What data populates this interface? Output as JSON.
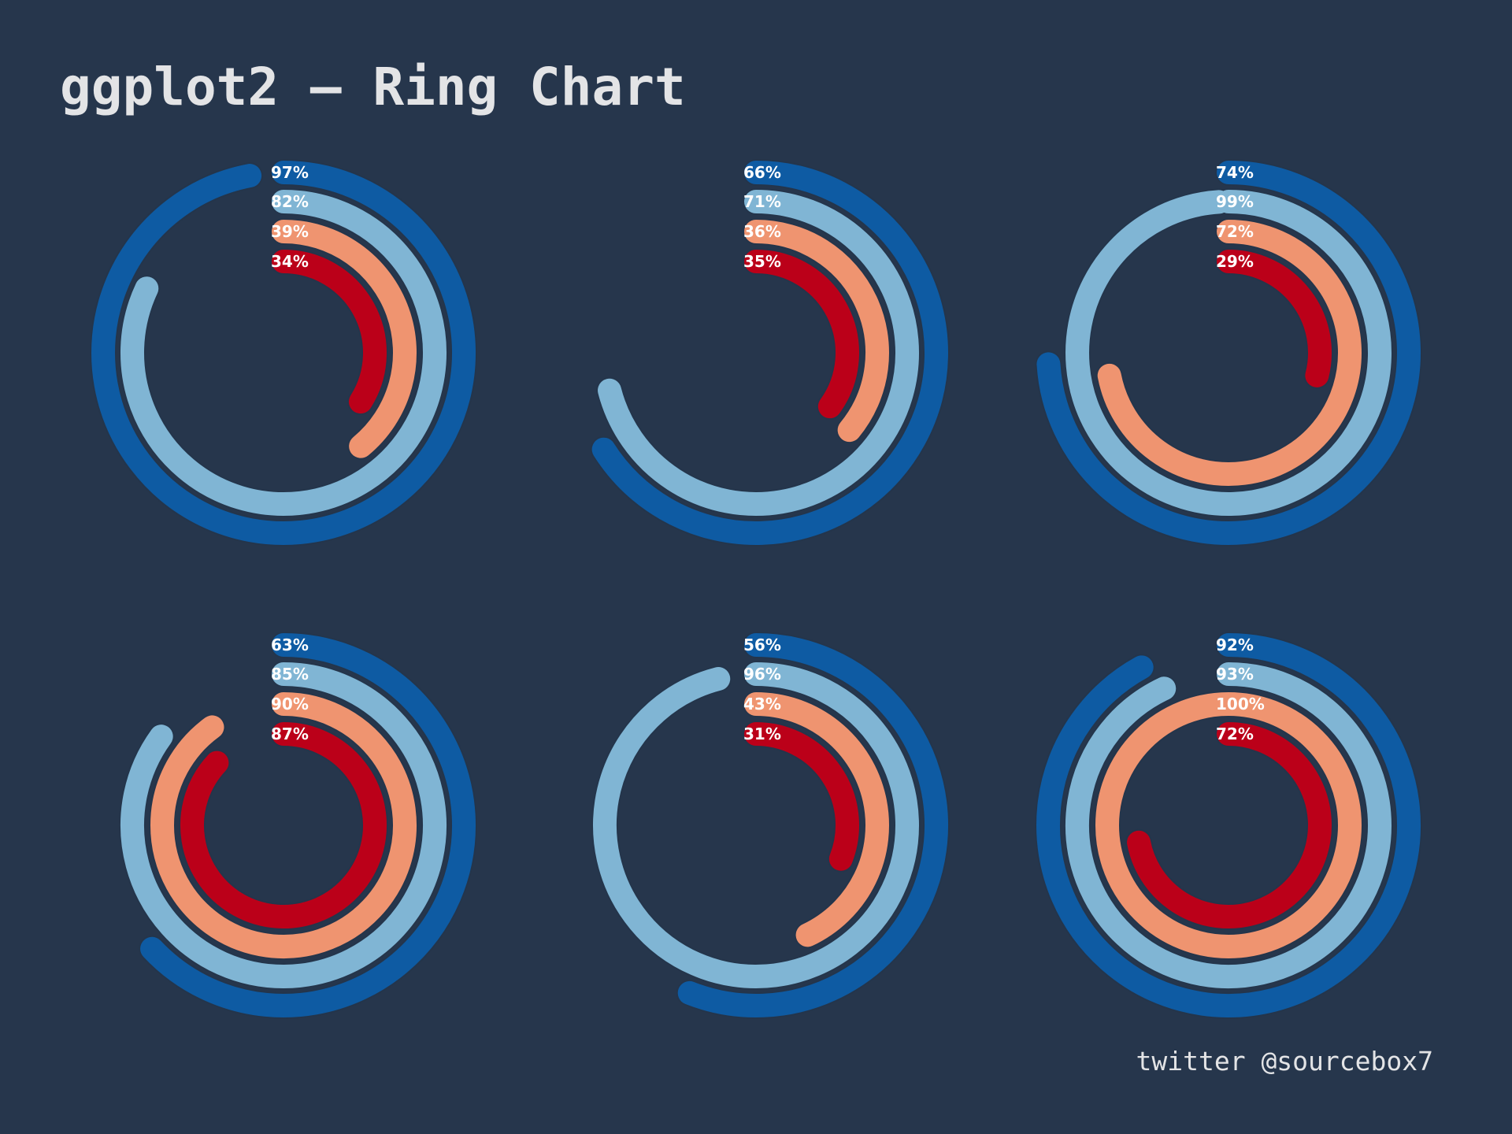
{
  "title": "ggplot2 – Ring Chart",
  "caption": "twitter @sourcebox7",
  "colors": {
    "background": "#26364c",
    "text": "#e3e4e6",
    "ring_outline": "#24354b",
    "label_text": "#ffffff"
  },
  "chart_data": {
    "type": "radial-bar",
    "title": "ggplot2 – Ring Chart",
    "value_unit": "%",
    "ring_colors": [
      "#0e5ba3",
      "#80b5d4",
      "#ef9470",
      "#bb0019"
    ],
    "panels": [
      {
        "values": [
          97,
          82,
          39,
          34
        ]
      },
      {
        "values": [
          66,
          71,
          36,
          35
        ]
      },
      {
        "values": [
          74,
          99,
          72,
          29
        ]
      },
      {
        "values": [
          63,
          85,
          90,
          87
        ]
      },
      {
        "values": [
          56,
          96,
          43,
          31
        ]
      },
      {
        "values": [
          92,
          93,
          100,
          72
        ]
      }
    ]
  }
}
